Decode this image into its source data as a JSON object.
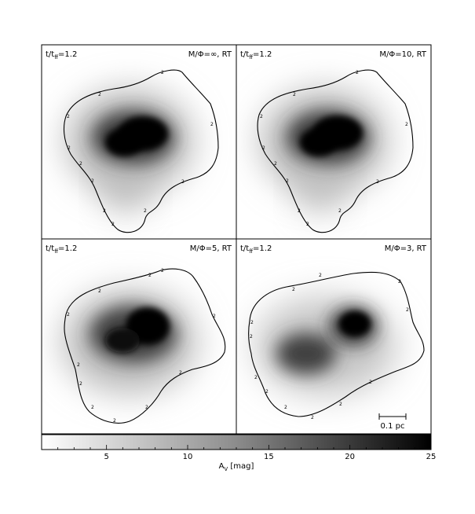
{
  "panels": [
    {
      "time_label": "t/t",
      "time_sub": "ff",
      "time_value": "=1.2",
      "model_label": "M/Φ=∞, RT",
      "contour_label": "2"
    },
    {
      "time_label": "t/t",
      "time_sub": "ff",
      "time_value": "=1.2",
      "model_label": "M/Φ=10, RT",
      "contour_label": "2"
    },
    {
      "time_label": "t/t",
      "time_sub": "ff",
      "time_value": "=1.2",
      "model_label": "M/Φ=5, RT",
      "contour_label": "2"
    },
    {
      "time_label": "t/t",
      "time_sub": "ff",
      "time_value": "=1.2",
      "model_label": "M/Φ=3, RT",
      "contour_label": "2"
    }
  ],
  "scale_bar": {
    "label": "0.1 pc"
  },
  "colorbar": {
    "ticks": [
      "5",
      "10",
      "15",
      "20",
      "25"
    ],
    "tick_values": [
      5,
      10,
      15,
      20,
      25
    ],
    "range": [
      1,
      25
    ],
    "label_main": "A",
    "label_sub": "V",
    "label_unit": " [mag]",
    "colormap": "grayscale white-to-black"
  }
}
